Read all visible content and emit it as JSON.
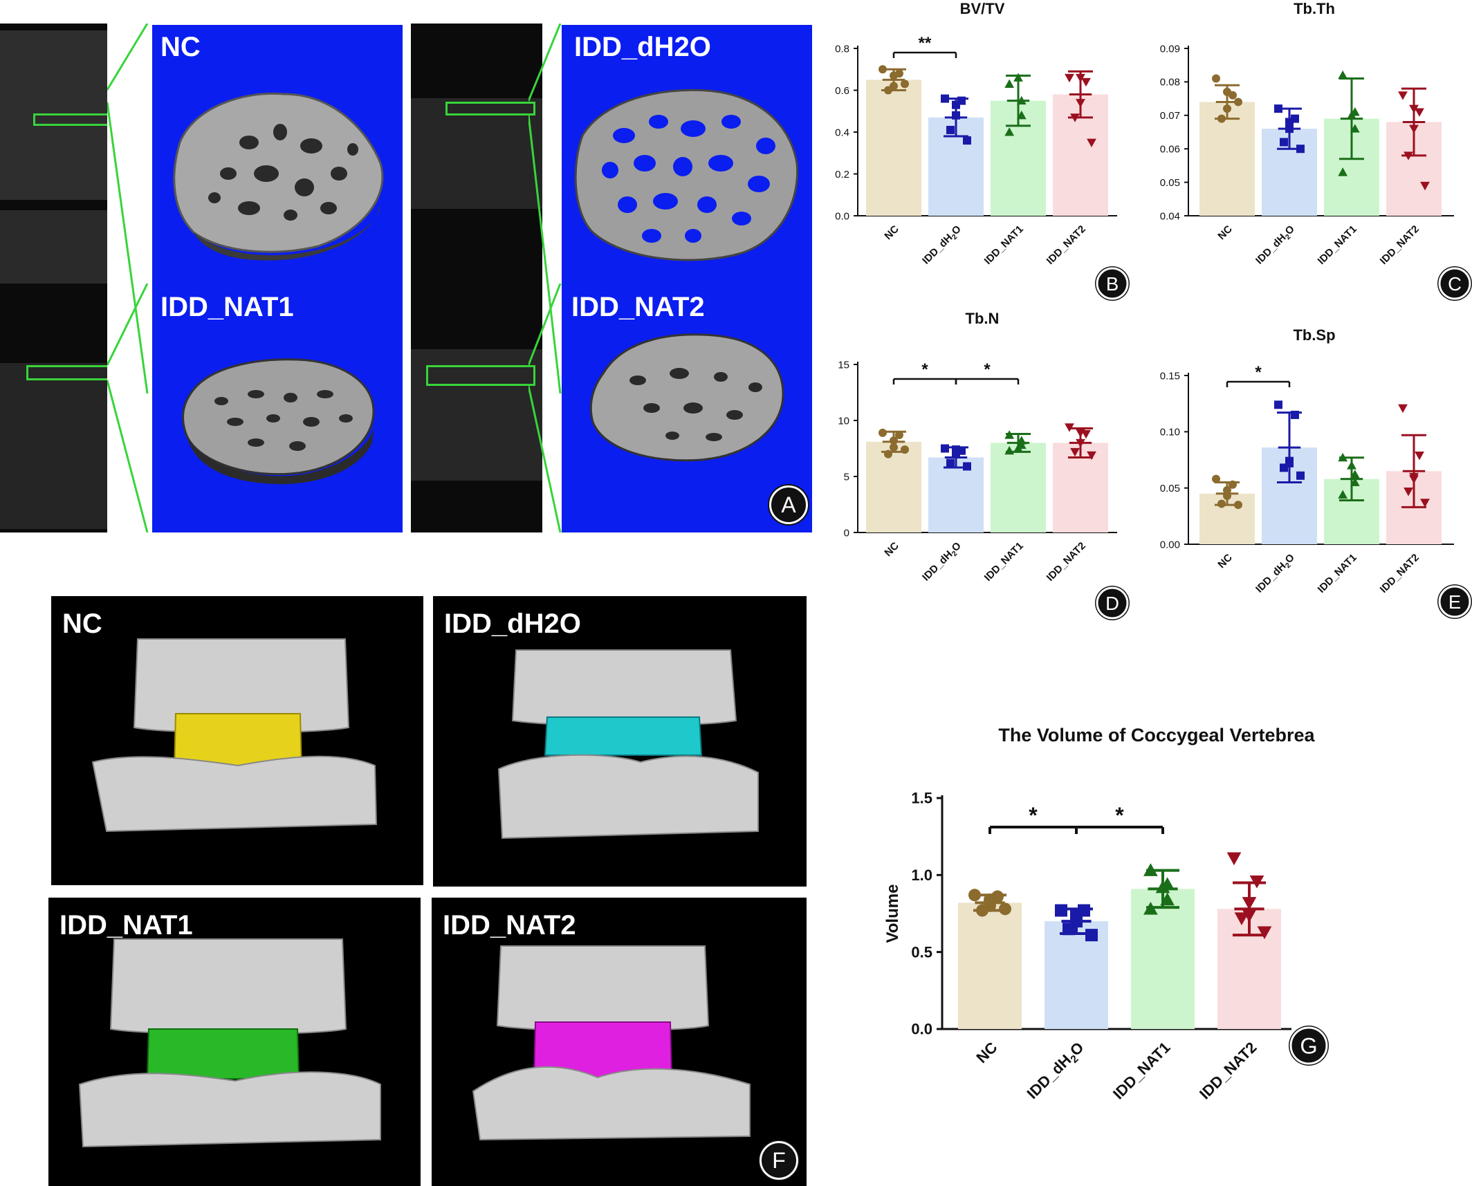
{
  "panels": {
    "A": {
      "label": "A",
      "titles": [
        "NC",
        "IDD_dH2O",
        "IDD_NAT1",
        "IDD_NAT2"
      ]
    },
    "F": {
      "label": "F",
      "titles": [
        "NC",
        "IDD_dH2O",
        "IDD_NAT1",
        "IDD_NAT2"
      ]
    }
  },
  "colors": {
    "NC": "#8b6b2e",
    "IDD_dH2O": "#1a1aa8",
    "IDD_NAT1": "#1a6e1a",
    "IDD_NAT2": "#9b1020",
    "NC_bar": "#ece3c9",
    "IDD_dH2O_bar": "#cfe0f6",
    "IDD_NAT1_bar": "#cdf5cd",
    "IDD_NAT2_bar": "#f9dcdd",
    "disc_NC": "#e6d21a",
    "disc_IDD_dH2O": "#1ec9cc",
    "disc_IDD_NAT1": "#28b828",
    "disc_IDD_NAT2": "#e020e0",
    "microct_background": "#0a1ef0"
  },
  "chart_data": [
    {
      "id": "B",
      "label": "B",
      "type": "bar",
      "title": "BV/TV",
      "ylabel": "",
      "categories": [
        "NC",
        "IDD_dH2O",
        "IDD_NAT1",
        "IDD_NAT2"
      ],
      "ylim": [
        0.0,
        0.8
      ],
      "yticks": [
        0.0,
        0.2,
        0.4,
        0.6,
        0.8
      ],
      "ytick_labels": [
        "0.0",
        "0.2",
        "0.4",
        "0.6",
        "0.8"
      ],
      "means": [
        0.65,
        0.47,
        0.55,
        0.58
      ],
      "sd": [
        0.05,
        0.09,
        0.12,
        0.11
      ],
      "points": [
        [
          0.7,
          0.68,
          0.62,
          0.6,
          0.63,
          0.67
        ],
        [
          0.56,
          0.55,
          0.48,
          0.41,
          0.36,
          0.53
        ],
        [
          0.63,
          0.55,
          0.48,
          0.4,
          0.66
        ],
        [
          0.66,
          0.64,
          0.54,
          0.47,
          0.35,
          0.66
        ]
      ],
      "significance": [
        {
          "from": 0,
          "to": 1,
          "text": "**"
        }
      ]
    },
    {
      "id": "C",
      "label": "C",
      "type": "bar",
      "title": "Tb.Th",
      "ylabel": "",
      "categories": [
        "NC",
        "IDD_dH2O",
        "IDD_NAT1",
        "IDD_NAT2"
      ],
      "ylim": [
        0.04,
        0.09
      ],
      "yticks": [
        0.04,
        0.05,
        0.06,
        0.07,
        0.08,
        0.09
      ],
      "ytick_labels": [
        "0.04",
        "0.05",
        "0.06",
        "0.07",
        "0.08",
        "0.09"
      ],
      "means": [
        0.074,
        0.066,
        0.069,
        0.068
      ],
      "sd": [
        0.005,
        0.006,
        0.012,
        0.01
      ],
      "points": [
        [
          0.081,
          0.076,
          0.072,
          0.069,
          0.074,
          0.077
        ],
        [
          0.072,
          0.069,
          0.068,
          0.062,
          0.06,
          0.066
        ],
        [
          0.082,
          0.071,
          0.066,
          0.053,
          0.07
        ],
        [
          0.076,
          0.071,
          0.066,
          0.058,
          0.049,
          0.072
        ]
      ],
      "significance": []
    },
    {
      "id": "D",
      "label": "D",
      "type": "bar",
      "title": "Tb.N",
      "ylabel": "",
      "categories": [
        "NC",
        "IDD_dH2O",
        "IDD_NAT1",
        "IDD_NAT2"
      ],
      "ylim": [
        0,
        15
      ],
      "yticks": [
        0,
        5,
        10,
        15
      ],
      "ytick_labels": [
        "0",
        "5",
        "10",
        "15"
      ],
      "means": [
        8.1,
        6.7,
        8.0,
        8.0
      ],
      "sd": [
        0.9,
        0.9,
        0.8,
        1.3
      ],
      "points": [
        [
          8.9,
          8.7,
          7.6,
          7.0,
          7.4,
          8.2
        ],
        [
          7.5,
          7.3,
          7.0,
          6.2,
          5.9,
          7.4
        ],
        [
          8.7,
          8.2,
          7.8,
          7.3,
          7.5
        ],
        [
          9.4,
          8.8,
          8.0,
          7.2,
          6.9,
          8.9
        ]
      ],
      "significance": [
        {
          "from": 0,
          "to": 1,
          "text": "*"
        },
        {
          "from": 1,
          "to": 2,
          "text": "*"
        }
      ]
    },
    {
      "id": "E",
      "label": "E",
      "type": "bar",
      "title": "Tb.Sp",
      "ylabel": "",
      "categories": [
        "NC",
        "IDD_dH2O",
        "IDD_NAT1",
        "IDD_NAT2"
      ],
      "ylim": [
        0.0,
        0.15
      ],
      "yticks": [
        0.0,
        0.05,
        0.1,
        0.15
      ],
      "ytick_labels": [
        "0.00",
        "0.05",
        "0.10",
        "0.15"
      ],
      "means": [
        0.045,
        0.086,
        0.058,
        0.065
      ],
      "sd": [
        0.01,
        0.031,
        0.019,
        0.032
      ],
      "points": [
        [
          0.058,
          0.053,
          0.043,
          0.036,
          0.035,
          0.048
        ],
        [
          0.124,
          0.115,
          0.074,
          0.068,
          0.061,
          0.072
        ],
        [
          0.077,
          0.062,
          0.055,
          0.044,
          0.07
        ],
        [
          0.121,
          0.079,
          0.06,
          0.047,
          0.037,
          0.058
        ]
      ],
      "significance": [
        {
          "from": 0,
          "to": 1,
          "text": "*"
        }
      ]
    },
    {
      "id": "G",
      "label": "G",
      "type": "bar",
      "title": "The Volume of Coccygeal Vertebrea",
      "ylabel": "Volume",
      "categories": [
        "NC",
        "IDD_dH2O",
        "IDD_NAT1",
        "IDD_NAT2"
      ],
      "ylim": [
        0.0,
        1.5
      ],
      "yticks": [
        0.0,
        0.5,
        1.0,
        1.5
      ],
      "ytick_labels": [
        "0.0",
        "0.5",
        "1.0",
        "1.5"
      ],
      "means": [
        0.82,
        0.7,
        0.91,
        0.78
      ],
      "sd": [
        0.05,
        0.08,
        0.12,
        0.17
      ],
      "points": [
        [
          0.87,
          0.86,
          0.8,
          0.77,
          0.78,
          0.84
        ],
        [
          0.77,
          0.77,
          0.7,
          0.65,
          0.61,
          0.74
        ],
        [
          1.03,
          0.94,
          0.84,
          0.78,
          0.92
        ],
        [
          1.11,
          0.96,
          0.82,
          0.72,
          0.63,
          0.74
        ]
      ],
      "significance": [
        {
          "from": 0,
          "to": 1,
          "text": "*"
        },
        {
          "from": 1,
          "to": 2,
          "text": "*"
        }
      ]
    }
  ]
}
